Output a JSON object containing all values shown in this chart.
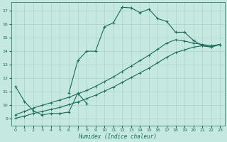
{
  "bg_color": "#c5e8e0",
  "grid_color": "#aed0c8",
  "line_color": "#1a6b5a",
  "xlabel": "Humidex (Indice chaleur)",
  "xlim": [
    -0.5,
    23.5
  ],
  "ylim": [
    8.5,
    17.6
  ],
  "yticks": [
    9,
    10,
    11,
    12,
    13,
    14,
    15,
    16,
    17
  ],
  "xticks": [
    0,
    1,
    2,
    3,
    4,
    5,
    6,
    7,
    8,
    9,
    10,
    11,
    12,
    13,
    14,
    15,
    16,
    17,
    18,
    19,
    20,
    21,
    22,
    23
  ],
  "curve1_x": [
    6,
    7,
    8,
    9,
    10,
    11,
    12,
    13,
    14,
    15,
    16,
    17,
    18,
    19,
    20,
    21,
    22,
    23
  ],
  "curve1_y": [
    10.9,
    13.3,
    14.0,
    14.0,
    15.8,
    16.1,
    17.25,
    17.2,
    16.85,
    17.1,
    16.4,
    16.2,
    15.4,
    15.4,
    14.8,
    14.4,
    14.3,
    14.5
  ],
  "curve2_x": [
    0,
    1,
    2,
    3,
    4,
    5,
    6,
    7,
    8
  ],
  "curve2_y": [
    11.4,
    10.3,
    9.6,
    9.3,
    9.4,
    9.4,
    9.5,
    10.9,
    10.15
  ],
  "curve3_x": [
    0,
    1,
    2,
    3,
    4,
    5,
    6,
    7,
    8,
    9,
    10,
    11,
    12,
    13,
    14,
    15,
    16,
    17,
    18,
    19,
    20,
    21,
    22,
    23
  ],
  "curve3_y": [
    9.05,
    9.2,
    9.4,
    9.55,
    9.7,
    9.85,
    10.05,
    10.25,
    10.5,
    10.75,
    11.05,
    11.35,
    11.7,
    12.05,
    12.4,
    12.75,
    13.15,
    13.55,
    13.9,
    14.1,
    14.3,
    14.4,
    14.35,
    14.5
  ],
  "curve4_x": [
    0,
    1,
    2,
    3,
    4,
    5,
    6,
    7,
    8,
    9,
    10,
    11,
    12,
    13,
    14,
    15,
    16,
    17,
    18,
    19,
    20,
    21,
    22,
    23
  ],
  "curve4_y": [
    9.3,
    9.55,
    9.8,
    10.0,
    10.2,
    10.4,
    10.6,
    10.85,
    11.1,
    11.4,
    11.75,
    12.1,
    12.5,
    12.9,
    13.3,
    13.7,
    14.15,
    14.6,
    14.85,
    14.75,
    14.6,
    14.5,
    14.4,
    14.5
  ]
}
